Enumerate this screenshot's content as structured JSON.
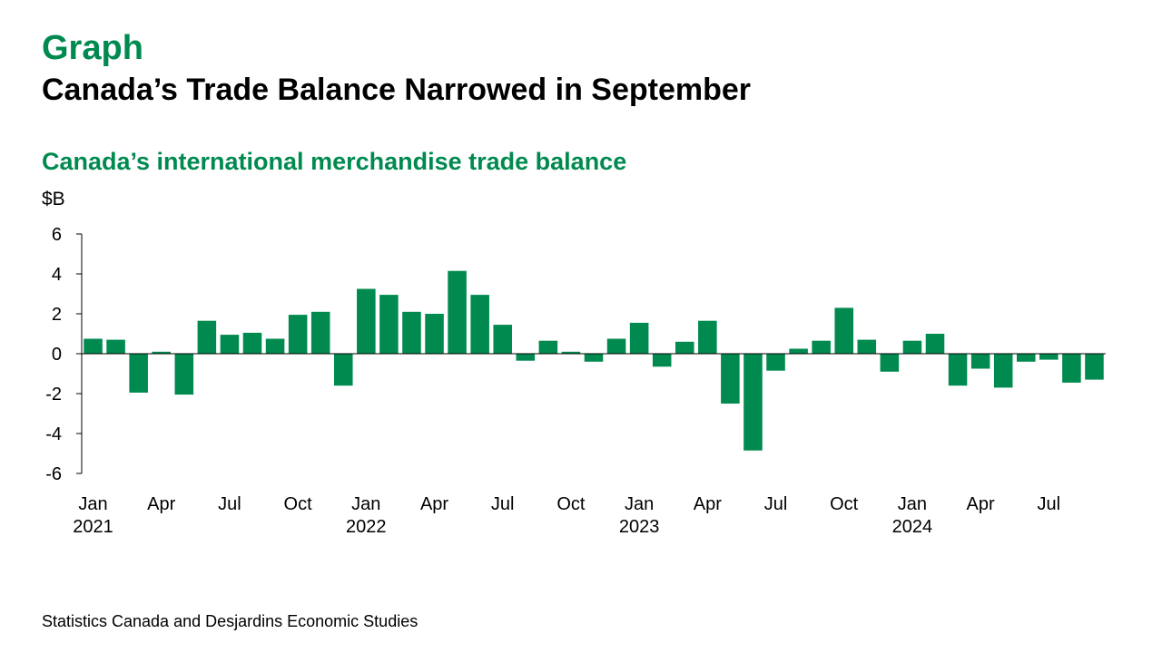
{
  "header": {
    "kicker": "Graph",
    "title": "Canada’s Trade Balance Narrowed in September"
  },
  "footer": {
    "source": "Statistics Canada and Desjardins Economic Studies"
  },
  "colors": {
    "accent": "#008a4f",
    "bar": "#008a4f",
    "axis": "#000000"
  },
  "chart_data": {
    "type": "bar",
    "title": "Canada’s international merchandise trade balance",
    "ylabel": "$B",
    "xlabel": "",
    "ylim": [
      -6,
      6
    ],
    "yticks": [
      6,
      4,
      2,
      0,
      -2,
      -4,
      -6
    ],
    "ytick_labels": [
      "6",
      "4",
      "2",
      "0",
      "-2",
      "-4",
      "-6"
    ],
    "grid": false,
    "legend": "none",
    "categories": [
      "Jan 2021",
      "Feb 2021",
      "Mar 2021",
      "Apr 2021",
      "May 2021",
      "Jun 2021",
      "Jul 2021",
      "Aug 2021",
      "Sep 2021",
      "Oct 2021",
      "Nov 2021",
      "Dec 2021",
      "Jan 2022",
      "Feb 2022",
      "Mar 2022",
      "Apr 2022",
      "May 2022",
      "Jun 2022",
      "Jul 2022",
      "Aug 2022",
      "Sep 2022",
      "Oct 2022",
      "Nov 2022",
      "Dec 2022",
      "Jan 2023",
      "Feb 2023",
      "Mar 2023",
      "Apr 2023",
      "May 2023",
      "Jun 2023",
      "Jul 2023",
      "Aug 2023",
      "Sep 2023",
      "Oct 2023",
      "Nov 2023",
      "Dec 2023",
      "Jan 2024",
      "Feb 2024",
      "Mar 2024",
      "Apr 2024",
      "May 2024",
      "Jun 2024",
      "Jul 2024",
      "Aug 2024",
      "Sep 2024"
    ],
    "values": [
      0.75,
      0.7,
      -1.95,
      0.1,
      -2.05,
      1.65,
      0.95,
      1.05,
      0.75,
      1.95,
      2.1,
      -1.6,
      3.25,
      2.95,
      2.1,
      2.0,
      4.15,
      2.95,
      1.45,
      -0.35,
      0.65,
      0.1,
      -0.4,
      0.75,
      1.55,
      -0.65,
      0.6,
      1.65,
      -2.5,
      -4.85,
      -0.85,
      0.25,
      0.65,
      2.3,
      0.7,
      -0.9,
      0.65,
      1.0,
      -1.6,
      -0.75,
      -1.7,
      -0.4,
      -0.3,
      -1.45,
      -1.3
    ],
    "x_tick_labels": [
      {
        "index": 0,
        "label": "Jan",
        "year": "2021"
      },
      {
        "index": 3,
        "label": "Apr",
        "year": ""
      },
      {
        "index": 6,
        "label": "Jul",
        "year": ""
      },
      {
        "index": 9,
        "label": "Oct",
        "year": ""
      },
      {
        "index": 12,
        "label": "Jan",
        "year": "2022"
      },
      {
        "index": 15,
        "label": "Apr",
        "year": ""
      },
      {
        "index": 18,
        "label": "Jul",
        "year": ""
      },
      {
        "index": 21,
        "label": "Oct",
        "year": ""
      },
      {
        "index": 24,
        "label": "Jan",
        "year": "2023"
      },
      {
        "index": 27,
        "label": "Apr",
        "year": ""
      },
      {
        "index": 30,
        "label": "Jul",
        "year": ""
      },
      {
        "index": 33,
        "label": "Oct",
        "year": ""
      },
      {
        "index": 36,
        "label": "Jan",
        "year": "2024"
      },
      {
        "index": 39,
        "label": "Apr",
        "year": ""
      },
      {
        "index": 42,
        "label": "Jul",
        "year": ""
      }
    ]
  }
}
